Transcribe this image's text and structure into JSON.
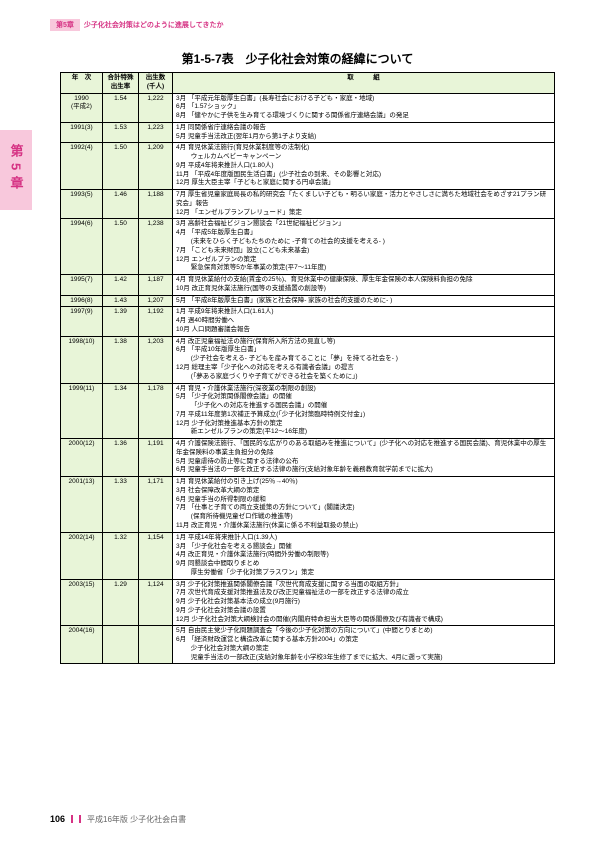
{
  "header": {
    "chapter": "第5章",
    "subtitle": "少子化社会対策はどのように進展してきたか"
  },
  "sideTab": "第5章",
  "title": "第1-5-7表　少子化社会対策の経緯について",
  "columns": [
    "年　次",
    "合計特殊\n出生率",
    "出生数\n(千人)",
    "取　　　組"
  ],
  "rows": [
    {
      "year": "1990\n(平成2)",
      "rate": "1.54",
      "births": "1,222",
      "content": "3月 「平成元年版厚生白書」(長寿社会における子ども・家庭・地域)\n6月 「1.57ショック」\n8月 「健やかに子供を生み育てる環境づくりに関する関係省庁連絡会議」の発足"
    },
    {
      "year": "1991(3)",
      "rate": "1.53",
      "births": "1,223",
      "content": "1月 同関係省庁連絡会議の報告\n5月 児童手当法改正(翌年1月から第1子より支給)"
    },
    {
      "year": "1992(4)",
      "rate": "1.50",
      "births": "1,209",
      "content": "4月 育児休業法施行(育児休業制度等の法制化)\n　　 ウェルカムベビーキャンペーン\n9月 平成4年将来推計人口(1.80人)\n11月 「平成4年度版国民生活白書」(少子社会の到来、その影響と対応)\n12月 厚生大臣主宰「子どもと家庭に関する円卓会議」"
    },
    {
      "year": "1993(5)",
      "rate": "1.46",
      "births": "1,188",
      "content": "7月 厚生省児童家庭局長の私的研究会「たくましい子ども・明るい家庭・活力とやさしさに満ちた地域社会をめざす21プラン研究会」報告\n12月 「エンゼルプランプレリュード」策定"
    },
    {
      "year": "1994(6)",
      "rate": "1.50",
      "births": "1,238",
      "content": "3月 高齢社会福祉ビジョン懇談会「21世紀福祉ビジョン」\n4月 「平成5年版厚生白書」\n　　 (未来をひらく子どもたちのために -子育ての社会的支援を考える- )\n7月 「こども未来財団」設立(こども未来基金)\n12月 エンゼルプランの策定\n　　 緊急保育対策等5か年事業の策定(平7～11年度)"
    },
    {
      "year": "1995(7)",
      "rate": "1.42",
      "births": "1,187",
      "content": "4月 育児休業給付の支給(賃金の25％)、育児休業中の健康保険、厚生年金保険の本人保険料負担の免除\n10月 改正育児休業法施行(国等の支援措置の創設等)"
    },
    {
      "year": "1996(8)",
      "rate": "1.43",
      "births": "1,207",
      "content": "5月 「平成8年版厚生白書」(家族と社会保障- 家族の社会的支援のために- )"
    },
    {
      "year": "1997(9)",
      "rate": "1.39",
      "births": "1,192",
      "content": "1月 平成9年将来推計人口(1.61人)\n4月 週40時間労働へ\n10月 人口問題審議会報告"
    },
    {
      "year": "1998(10)",
      "rate": "1.38",
      "births": "1,203",
      "content": "4月 改正児童福祉法の施行(保育所入所方法の見直し等)\n6月 「平成10年版厚生白書」\n　　 (少子社会を考える- 子どもを産み育てることに「夢」を持てる社会を- )\n12月 総理主宰「少子化への対応を考える有識者会議」の提言\n　　 (「夢ある家庭づくりや子育てができる社会を築くために」)"
    },
    {
      "year": "1999(11)",
      "rate": "1.34",
      "births": "1,178",
      "content": "4月 育児・介護休業法施行(深夜業の制限の創設)\n5月 「少子化対策関係閣僚会議」の開催\n　　 「少子化への対応を推進する国民会議」の開催\n7月 平成11年度第1次補正予算成立(「少子化対策臨時特例交付金」)\n12月 少子化対策推進基本方針の策定\n　　 新エンゼルプランの策定(平12～16年度)"
    },
    {
      "year": "2000(12)",
      "rate": "1.36",
      "births": "1,191",
      "content": "4月 介護保険法施行、「国民的な広がりのある取組みを推進について」(少子化への対応を推進する国民会議)、育児休業中の厚生年金保険料の事業主負担分の免除\n5月 児童虐待の防止等に関する法律の公布\n6月 児童手当法の一部を改正する法律の施行(支給対象年齢を義務教育就学前までに拡大)"
    },
    {
      "year": "2001(13)",
      "rate": "1.33",
      "births": "1,171",
      "content": "1月 育児休業給付の引き上げ(25％→40％)\n3月 社会保障改革大綱の策定\n6月 児童手当の所得制限の緩和\n7月 「仕事と子育ての両立支援策の方針について」(閣議決定)\n　　 (保育所待機児童ゼロ作戦の推進等)\n11月 改正育児・介護休業法施行(休業に係る不利益取扱の禁止)"
    },
    {
      "year": "2002(14)",
      "rate": "1.32",
      "births": "1,154",
      "content": "1月 平成14年将来推計人口(1.39人)\n3月 「少子化社会を考える懇談会」開催\n4月 改正育児・介護休業法施行(時間外労働の制限等)\n9月 同懇談会中間取りまとめ\n　　 厚生労働省「少子化対策プラスワン」策定"
    },
    {
      "year": "2003(15)",
      "rate": "1.29",
      "births": "1,124",
      "content": "3月 少子化対策推進関係閣僚会議「次世代育成支援に関する当面の取組方針」\n7月 次世代育成支援対策推進法及び改正児童福祉法の一部を改正する法律の成立\n9月 少子化社会対策基本法の成立(9月施行)\n9月 少子化社会対策会議の設置\n12月 少子化社会対策大綱検討会の開催(内閣府特命担当大臣等の関係閣僚及び有識者で構成)"
    },
    {
      "year": "2004(16)",
      "rate": "",
      "births": "",
      "content": "5月 自由民主党少子化問題調査会「今後の少子化対策の方向について」(中間とりまとめ)\n6月 「経済財政運営と構造改革に関する基本方針2004」の策定\n　　 少子化社会対策大綱の策定\n　　 児童手当法の一部改正(支給対象年齢を小学校3年生修了までに拡大、4月に遡って実施)"
    }
  ],
  "footer": {
    "page": "106",
    "book": "平成16年版 少子化社会白書"
  }
}
